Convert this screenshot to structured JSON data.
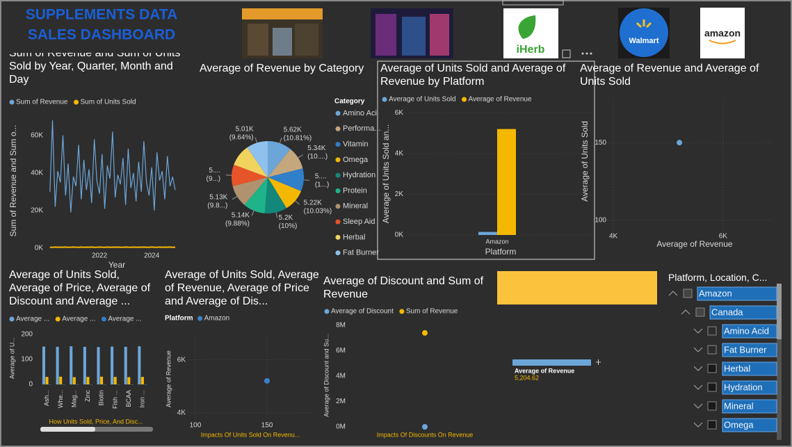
{
  "header": {
    "title_lines": [
      "SUPPLEMENTS DATA",
      "SALES DASHBOARD"
    ],
    "logos": [
      "iHerb",
      "Walmart",
      "amazon"
    ]
  },
  "chart_data": [
    {
      "type": "line",
      "title": "Sum of Revenue and Sum of Units Sold by Year, Quarter, Month and Day",
      "x_label": "Year",
      "y_label": "Sum of Revenue and Sum o...",
      "x": [
        2020.1,
        2020.2,
        2020.3,
        2020.4,
        2020.5,
        2020.6,
        2020.7,
        2020.8,
        2020.9,
        2021.0,
        2021.1,
        2021.2,
        2021.3,
        2021.4,
        2021.5,
        2021.6,
        2021.7,
        2021.8,
        2021.9,
        2022.0,
        2022.1,
        2022.2,
        2022.3,
        2022.4,
        2022.5,
        2022.6,
        2022.7,
        2022.8,
        2022.9,
        2023.0,
        2023.1,
        2023.2,
        2023.3,
        2023.4,
        2023.5,
        2023.6,
        2023.7,
        2023.8,
        2023.9,
        2024.0,
        2024.1,
        2024.2,
        2024.3,
        2024.4,
        2024.5,
        2024.6,
        2024.7,
        2024.8,
        2024.9
      ],
      "series": [
        {
          "name": "Sum of Revenue",
          "color": "#6ca6d9",
          "values": [
            30000,
            68000,
            22000,
            41000,
            35000,
            60000,
            28000,
            45000,
            19000,
            38000,
            33000,
            55000,
            26000,
            47000,
            31000,
            42000,
            24000,
            58000,
            36000,
            29000,
            50000,
            21000,
            44000,
            37000,
            62000,
            27000,
            39000,
            34000,
            48000,
            23000,
            53000,
            32000,
            40000,
            25000,
            46000,
            30000,
            57000,
            35000,
            28000,
            43000,
            20000,
            51000,
            36000,
            41000,
            26000,
            49000,
            33000,
            38000,
            31000
          ]
        },
        {
          "name": "Sum of Units Sold",
          "color": "#f5b800",
          "values": [
            520,
            480,
            610,
            450,
            560,
            500,
            590,
            470,
            530,
            610,
            520,
            480,
            610,
            450,
            560,
            500,
            590,
            470,
            530,
            610,
            520,
            480,
            610,
            450,
            560,
            500,
            590,
            470,
            530,
            610,
            520,
            480,
            610,
            450,
            560,
            500,
            590,
            470,
            530,
            610,
            520,
            480,
            610,
            450,
            560,
            500,
            590,
            470,
            530
          ]
        }
      ],
      "xlim": [
        2020,
        2025.3
      ],
      "xticks": [
        2022,
        2024
      ],
      "ylim": [
        0,
        71000
      ],
      "yticks": [
        {
          "value": 0,
          "label": "0K"
        },
        {
          "value": 20000,
          "label": "20K"
        },
        {
          "value": 40000,
          "label": "40K"
        },
        {
          "value": 60000,
          "label": "60K"
        }
      ],
      "grid": false
    },
    {
      "type": "pie",
      "title": "Average of Revenue by Category",
      "legend_title": "Category",
      "categories": [
        "Amino Aci",
        "Performa...",
        "Vitamin",
        "Omega",
        "Hydration",
        "Protein",
        "Mineral",
        "Sleep Aid",
        "Herbal",
        "Fat Burner"
      ],
      "colors": [
        "#6ca6d9",
        "#c4a77d",
        "#2f7fc9",
        "#f5b800",
        "#13877a",
        "#1fb38a",
        "#b0926f",
        "#e8542a",
        "#f2d35e",
        "#8fc1ee"
      ],
      "values": [
        5.62,
        5.34,
        5.3,
        5.22,
        5.2,
        5.14,
        5.13,
        5.0,
        5.05,
        5.01
      ],
      "value_labels": [
        "5.62K",
        "5.34K",
        "5....",
        "5.22K",
        "5.2K",
        "5.14K",
        "5.13K",
        "5....",
        null,
        "5.01K"
      ],
      "percent_labels": [
        "(10.81%)",
        "(10....)",
        "(1...)",
        "(10.03%)",
        "(10%)",
        "(9.88%)",
        "(9.8...)",
        "(9...)",
        null,
        "(9.64%)"
      ]
    },
    {
      "type": "bar",
      "title": "Average of Units Sold and Average of Revenue by Platform",
      "x_label": "Platform",
      "y_label": "Average of Units Sold an...",
      "categories": [
        "Amazon"
      ],
      "series": [
        {
          "name": "Average of Units Sold",
          "color": "#6ca6d9",
          "values": [
            150
          ]
        },
        {
          "name": "Average of Revenue",
          "color": "#f5b800",
          "values": [
            5204.62
          ]
        }
      ],
      "ylim": [
        0,
        6250
      ],
      "yticks": [
        {
          "value": 0,
          "label": "0K"
        },
        {
          "value": 2000,
          "label": "2K"
        },
        {
          "value": 4000,
          "label": "4K"
        },
        {
          "value": 6000,
          "label": "6K"
        }
      ],
      "grid": true
    },
    {
      "type": "scatter",
      "title": "Average of Revenue and Average of Units Sold",
      "x_label": "Average of Revenue",
      "y_label": "Average of Units Sold",
      "series": [
        {
          "color": "#6ca6d9",
          "x": [
            5204.62
          ],
          "values": [
            150
          ]
        }
      ],
      "xlim": [
        3720,
        6890
      ],
      "xticks": [
        {
          "value": 4000,
          "label": "4K"
        },
        {
          "value": 6000,
          "label": "6K"
        }
      ],
      "ylim": [
        94,
        177
      ],
      "yticks": [
        100,
        150
      ],
      "grid": true
    },
    {
      "type": "bar",
      "title": "Average of Units Sold, Average of Price, Average of Discount and Average ...",
      "y_label": "Average of U...",
      "categories": [
        "Ash...",
        "Whe...",
        "Mag...",
        "Zinc",
        "Biotin",
        "Fish ...",
        "BCAA",
        "Iron ..."
      ],
      "series": [
        {
          "name": "Average ...",
          "color": "#6ca6d9",
          "values": [
            151,
            150,
            152,
            150,
            149,
            151,
            150,
            152
          ]
        },
        {
          "name": "Average ...",
          "color": "#f5b800",
          "values": [
            30,
            31,
            29,
            30,
            31,
            30,
            29,
            30
          ]
        },
        {
          "name": "Average ...",
          "color": "#2f7fc9",
          "values": [
            0.1,
            0.1,
            0.1,
            0.1,
            0.1,
            0.1,
            0.1,
            0.1
          ]
        }
      ],
      "ylim": [
        0,
        230
      ],
      "yticks": [
        0,
        100,
        200
      ],
      "grid": false,
      "scrollbar_label": "How Units Sold, Price, And Disc..."
    },
    {
      "type": "scatter",
      "title": "Average of Units Sold, Average of Revenue, Average of Price and Average of Dis...",
      "legend_title": "Platform",
      "x_label": "Impacts Of Units Sold On Revenu...",
      "y_label": "Average of Revenue",
      "series": [
        {
          "name": "Amazon",
          "color": "#3d82c8",
          "x": [
            150
          ],
          "values": [
            5204.62
          ]
        }
      ],
      "xlim": [
        85,
        182
      ],
      "xticks": [
        100,
        150
      ],
      "ylim": [
        3780,
        6990
      ],
      "yticks": [
        {
          "value": 4000,
          "label": "4K"
        },
        {
          "value": 6000,
          "label": "6K"
        }
      ],
      "grid": true
    },
    {
      "type": "scatter",
      "title": "Average of Discount and Sum of Revenue",
      "x_label": "Impacts Of Discounts On Revenue",
      "y_label": "Average of Discount and Su...",
      "categories": [
        null
      ],
      "series": [
        {
          "name": "Average of Discount",
          "color": "#6ca6d9",
          "values": [
            0.1
          ]
        },
        {
          "name": "Sum of Revenue",
          "color": "#f5b800",
          "values": [
            7400000
          ]
        }
      ],
      "ylim": [
        0,
        8600000
      ],
      "yticks": [
        {
          "value": 0,
          "label": "0M"
        },
        {
          "value": 2000000,
          "label": "2M"
        },
        {
          "value": 4000000,
          "label": "4M"
        },
        {
          "value": 6000000,
          "label": "6M"
        },
        {
          "value": 8000000,
          "label": "8M"
        }
      ],
      "grid": false
    }
  ],
  "card": {
    "label": "Average of Revenue",
    "value": 5204.62,
    "value_label": "5,204.62"
  },
  "slicer": {
    "title": "Platform, Location, C...",
    "items": [
      {
        "label": "Amazon",
        "level": 0
      },
      {
        "label": "Canada",
        "level": 1
      },
      {
        "label": "Amino Acid",
        "level": 2
      },
      {
        "label": "Fat Burner",
        "level": 2
      },
      {
        "label": "Herbal",
        "level": 2
      },
      {
        "label": "Hydration",
        "level": 2
      },
      {
        "label": "Mineral",
        "level": 2
      },
      {
        "label": "Omega",
        "level": 2
      }
    ]
  }
}
